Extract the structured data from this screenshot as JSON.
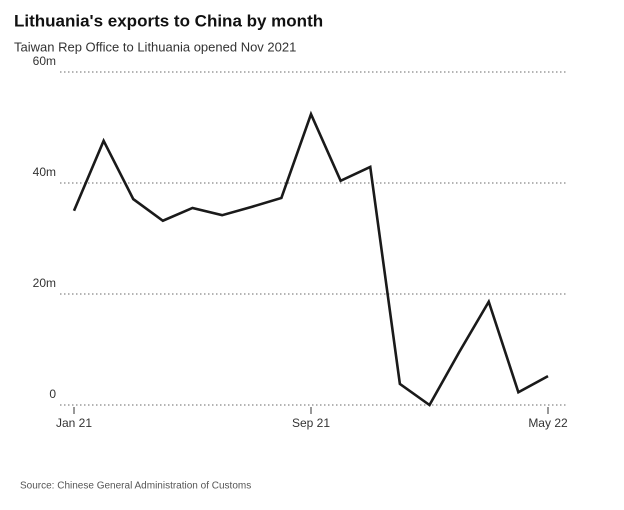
{
  "chart_data": {
    "type": "line",
    "title": "Lithuania's exports to China by month",
    "subtitle": "Taiwan Rep Office to Lithuania opened Nov 2021",
    "source": "Source: Chinese General Administration of Customs",
    "categories": [
      "Jan 21",
      null,
      null,
      null,
      null,
      null,
      null,
      null,
      "Sep 21",
      null,
      null,
      null,
      null,
      null,
      null,
      null,
      "May 22"
    ],
    "series": [
      {
        "name": "Exports",
        "color": "#1a1a1a",
        "values": [
          35.0,
          47.6,
          37.1,
          33.2,
          35.5,
          34.2,
          35.7,
          37.3,
          52.4,
          40.4,
          42.9,
          3.8,
          0,
          9.5,
          18.6,
          2.3,
          5.2
        ]
      }
    ],
    "ylim": [
      0,
      60
    ],
    "yticks": [
      0,
      {
        "value": 20,
        "label": "20m"
      },
      {
        "value": 40,
        "label": "40m"
      },
      {
        "value": 60,
        "label": "60m"
      }
    ],
    "grid": true
  }
}
